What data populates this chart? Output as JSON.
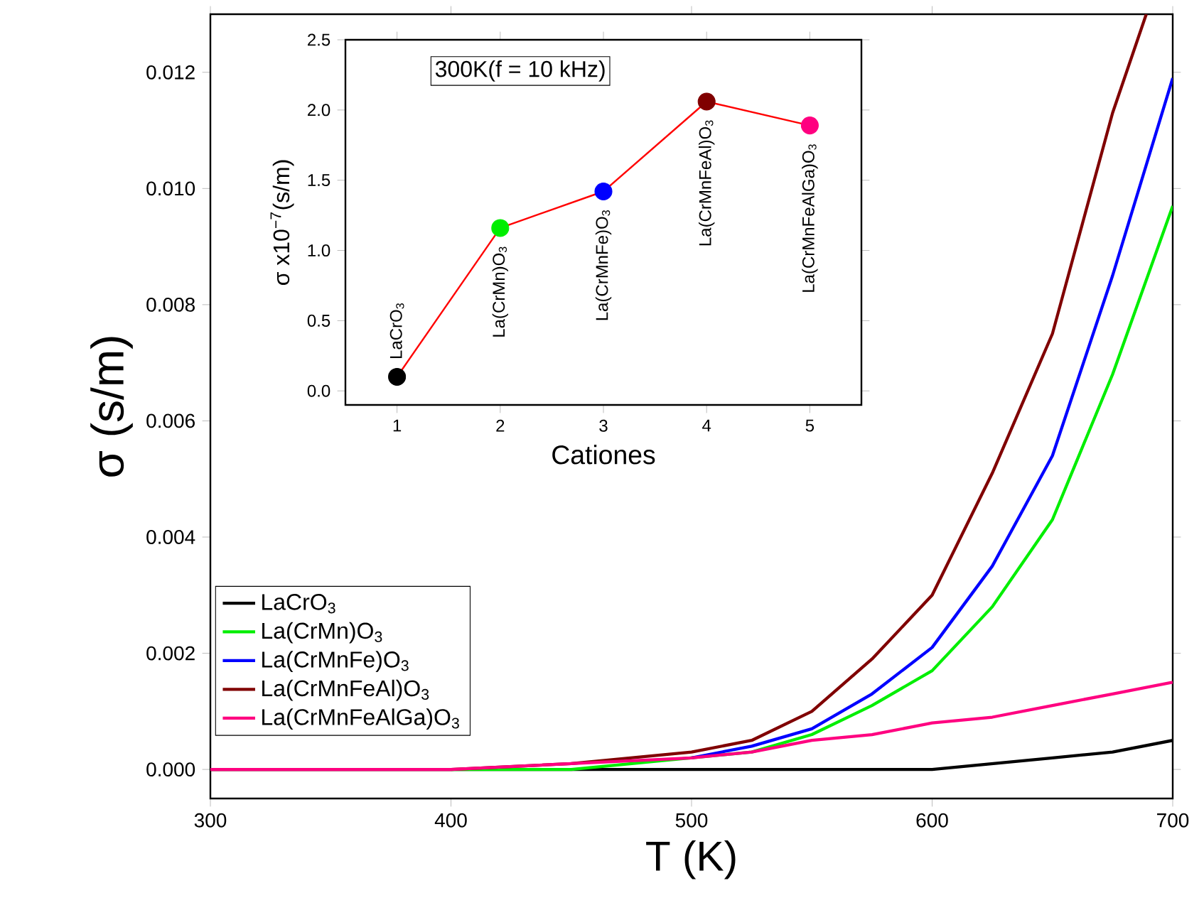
{
  "chart_data": [
    {
      "type": "line",
      "xlabel": "T (K)",
      "ylabel": "σ (s/m)",
      "xlim": [
        300,
        700
      ],
      "ylim": [
        -0.0005,
        0.013
      ],
      "xticks": [
        300,
        400,
        500,
        600,
        700
      ],
      "yticks": [
        {
          "value": 0,
          "label": "0.000"
        },
        {
          "value": 0.002,
          "label": "0.002"
        },
        {
          "value": 0.004,
          "label": "0.004"
        },
        {
          "value": 0.006,
          "label": "0.006"
        },
        {
          "value": 0.008,
          "label": "0.008"
        },
        {
          "value": 0.01,
          "label": "0.010"
        },
        {
          "value": 0.012,
          "label": "0.012"
        }
      ],
      "legend": "bottom left",
      "grid": false,
      "x": [
        300,
        350,
        400,
        450,
        500,
        525,
        550,
        575,
        600,
        625,
        650,
        675,
        700
      ],
      "series": [
        {
          "name": "LaCrO$_{3}$",
          "color": "#000000",
          "values": [
            0,
            0,
            0,
            0,
            0,
            0,
            0,
            0,
            0,
            0.0001,
            0.0002,
            0.0003,
            0.0005
          ]
        },
        {
          "name": "La(CrMn)O$_{3}$",
          "color": "#00ee00",
          "values": [
            null,
            null,
            0,
            0,
            null,
            0.0003,
            0.0006,
            0.0011,
            0.0017,
            0.0028,
            0.0043,
            0.0068,
            0.0097
          ]
        },
        {
          "name": "La(CrMnFe)O$_{3}$",
          "color": "#0000ff",
          "values": [
            null,
            null,
            null,
            null,
            0.0002,
            0.0004,
            0.0007,
            0.0013,
            0.0021,
            0.0035,
            0.0054,
            0.0085,
            0.0119
          ]
        },
        {
          "name": "La(CrMnFeAl)O$_{3}$",
          "color": "#800000",
          "x": [
            300,
            350,
            400,
            450,
            500,
            525,
            550,
            575,
            600,
            625,
            650,
            675,
            689
          ],
          "values": [
            0,
            0,
            0,
            0.0001,
            0.0003,
            0.0005,
            0.001,
            0.0019,
            0.003,
            0.0051,
            0.0075,
            0.0113,
            0.013
          ]
        },
        {
          "name": "La(CrMnFeAlGa)O$_{3}$",
          "color": "#ff0080",
          "values": [
            0,
            0,
            0,
            0.0001,
            0.0002,
            0.0003,
            0.0005,
            0.0006,
            0.0008,
            0.0009,
            0.0011,
            0.0013,
            0.0015
          ]
        }
      ]
    },
    {
      "type": "scatter",
      "xlabel": "Cationes",
      "ylabel": "σ x10$^{−7}$(s/m)",
      "xlim": [
        0.5,
        5.5
      ],
      "ylim": [
        -0.1,
        2.5
      ],
      "xticks": [
        1,
        2,
        3,
        4,
        5
      ],
      "yticks": [
        {
          "value": 0,
          "label": "0.0"
        },
        {
          "value": 0.5,
          "label": "0.5"
        },
        {
          "value": 1,
          "label": "1.0"
        },
        {
          "value": 1.5,
          "label": "1.5"
        },
        {
          "value": 2,
          "label": "2.0"
        },
        {
          "value": 2.5,
          "label": "2.5"
        }
      ],
      "grid": false,
      "marker": "circle",
      "x": [
        1,
        2,
        3,
        4,
        5
      ],
      "series": [
        {
          "type": "line",
          "color": "#ff0000",
          "colors": [
            "#000000",
            "#00ee00",
            "#0000ff",
            "#800000",
            "#ff0080"
          ],
          "values": [
            0.1,
            1.16,
            1.42,
            2.06,
            1.89
          ]
        }
      ],
      "annotations": [
        "300K(f = 10 kHz)",
        {
          "text": "LaCrO$_{3}$",
          "x": 1,
          "y": 0.1
        },
        {
          "text": "La(CrMn)O$_{3}$",
          "x": 2,
          "y": 1.16
        },
        {
          "text": "La(CrMnFe)O$_{3}$",
          "x": 3,
          "y": 1.42
        },
        {
          "text": "La(CrMnFeAl)O$_{3}$",
          "x": 4,
          "y": 2.06
        },
        {
          "text": "La(CrMnFeAlGa)O$_{3}$",
          "x": 5,
          "y": 1.89
        }
      ]
    }
  ]
}
